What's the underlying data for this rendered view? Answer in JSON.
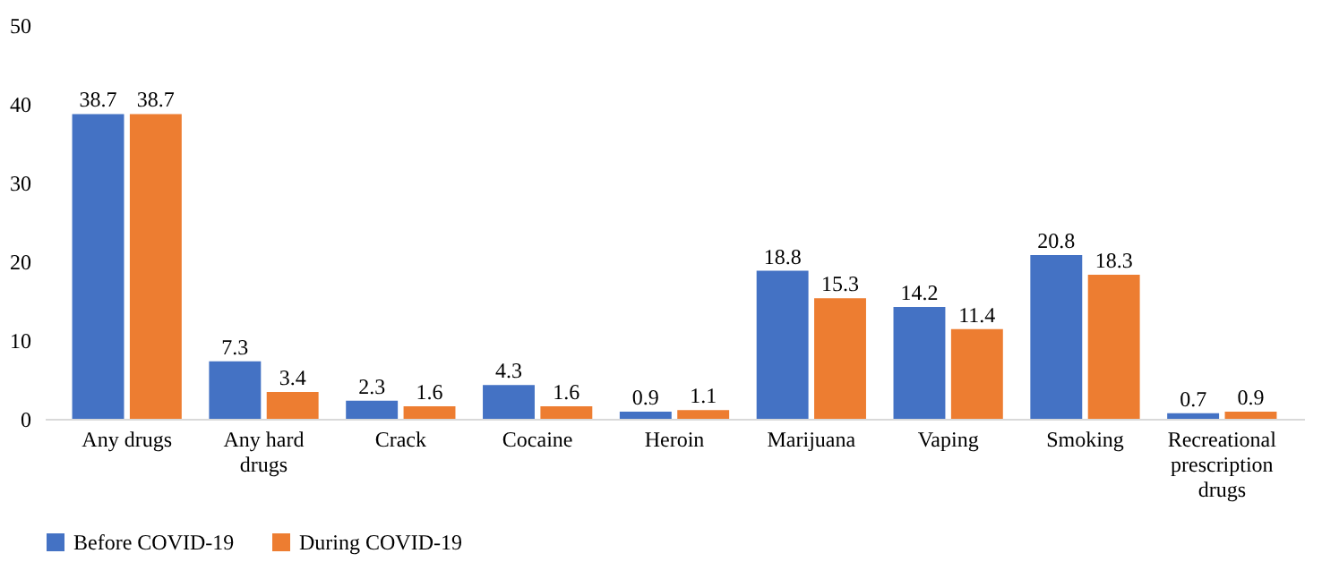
{
  "chart_data": {
    "type": "bar",
    "categories": [
      "Any drugs",
      "Any hard drugs",
      "Crack",
      "Cocaine",
      "Heroin",
      "Marijuana",
      "Vaping",
      "Smoking",
      "Recreational prescription drugs"
    ],
    "series": [
      {
        "name": "Before COVID-19",
        "color": "#4472c4",
        "values": [
          38.7,
          7.3,
          2.3,
          4.3,
          0.9,
          18.8,
          14.2,
          20.8,
          0.7
        ]
      },
      {
        "name": "During COVID-19",
        "color": "#ed7d31",
        "values": [
          38.7,
          3.4,
          1.6,
          1.6,
          1.1,
          15.3,
          11.4,
          18.3,
          0.9
        ]
      }
    ],
    "ylim": [
      0,
      50
    ],
    "yticks": [
      0,
      10,
      20,
      30,
      40,
      50
    ],
    "grid": false,
    "legend": "bottom",
    "data_labels": true
  }
}
